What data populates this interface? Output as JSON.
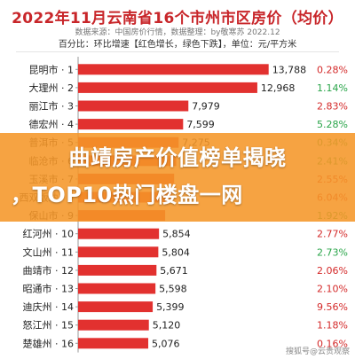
{
  "header": {
    "title": "2022年11月云南省16个市州市区房价（均价）",
    "subtitle": "数据来源：中国房价行情，数据整理：by敬寒苏 2022.12",
    "note": "百分比：环比增速【红色增长，绿色下跌】，单位：元/平方米"
  },
  "chart_data": {
    "type": "bar",
    "orientation": "horizontal",
    "categories": [
      "昆明市 · 1",
      "大理州 · 2",
      "丽江市 · 3",
      "德宏州 · 4",
      "普洱市 · 5",
      "临沧市 · 6",
      "玉溪市 · 7",
      "西双版纳 · 8",
      "保山市 · 9",
      "红河州 · 10",
      "文山州 · 11",
      "曲靖市 · 12",
      "昭通市 · 13",
      "迪庆州 · 14",
      "怒江州 · 15",
      "楚雄州 · 16"
    ],
    "values": [
      13788,
      12968,
      7979,
      7599,
      7275,
      7100,
      6950,
      6800,
      6300,
      5854,
      5804,
      5671,
      5598,
      5399,
      5120,
      5076
    ],
    "value_labels": [
      "13,788",
      "12,968",
      "7,979",
      "7,599",
      "7,275",
      "",
      "",
      "",
      "",
      "5,854",
      "5,804",
      "5,671",
      "5,598",
      "5,399",
      "5,120",
      "5,076"
    ],
    "changes": [
      "0.28%",
      "1.14%",
      "2.83%",
      "5.28%",
      "0.34%",
      "2.41%",
      "2.55%",
      "6.04%",
      "1.92%",
      "2.77%",
      "2.73%",
      "2.06%",
      "2.10%",
      "9.56%",
      "1.18%",
      "0.16%"
    ],
    "change_direction": [
      "up",
      "down",
      "up",
      "down",
      "down",
      "down",
      "up",
      "up",
      "down",
      "up",
      "down",
      "up",
      "up",
      "up",
      "up",
      "up"
    ],
    "xlim": [
      0,
      14000
    ],
    "colors": {
      "bar": "#e2312f",
      "up": "#d42a2a",
      "down": "#2aa54a"
    }
  },
  "overlay": {
    "line1": "曲靖房产价值榜单揭晓",
    "line2": "，TOP10热门楼盘一网"
  },
  "watermark": "搜狐号@云贵观察"
}
